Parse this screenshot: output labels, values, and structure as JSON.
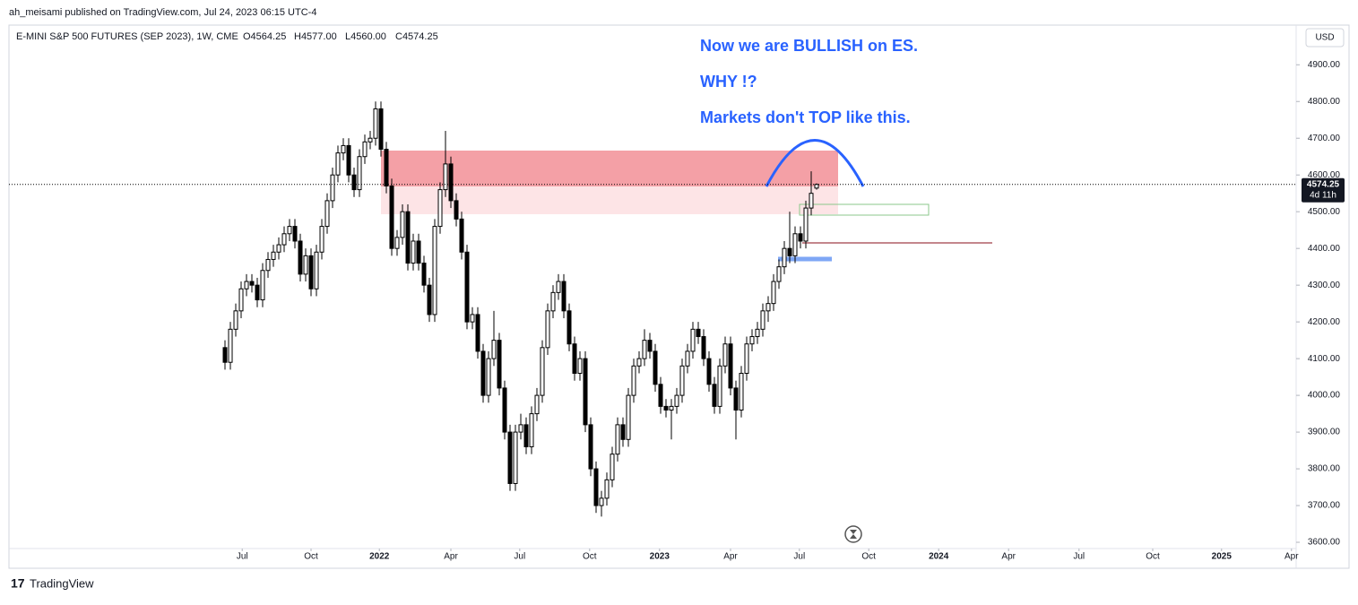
{
  "header": {
    "publisher": "ah_meisami published on TradingView.com, Jul 24, 2023 06:15 UTC-4",
    "footer": "TradingView"
  },
  "chart_data": {
    "type": "candlestick",
    "title": "E-MINI S&P 500 FUTURES (SEP 2023), 1W, CME",
    "ohlc_legend": [
      "O4564.25",
      "H4577.00",
      "L4560.00",
      "C4574.25"
    ],
    "currency": "USD",
    "last_price_label": "4574.25",
    "countdown": "4d 11h",
    "annotations": [
      "Now we are BULLISH on ES.",
      "WHY !?",
      "Markets don't TOP like this."
    ],
    "up_color": "#ffffff",
    "down_color": "#000000",
    "wick_color": "#000000",
    "ylim": [
      3583,
      5008
    ],
    "yticks": [
      {
        "value": 3600,
        "label": "3600.00"
      },
      {
        "value": 3700,
        "label": "3700.00"
      },
      {
        "value": 3800,
        "label": "3800.00"
      },
      {
        "value": 3900,
        "label": "3900.00"
      },
      {
        "value": 4000,
        "label": "4000.00"
      },
      {
        "value": 4100,
        "label": "4100.00"
      },
      {
        "value": 4200,
        "label": "4200.00"
      },
      {
        "value": 4300,
        "label": "4300.00"
      },
      {
        "value": 4400,
        "label": "4400.00"
      },
      {
        "value": 4500,
        "label": "4500.00"
      },
      {
        "value": 4600,
        "label": "4600.00"
      },
      {
        "value": 4700,
        "label": "4700.00"
      },
      {
        "value": 4800,
        "label": "4800.00"
      },
      {
        "value": 4900,
        "label": "4900.00"
      }
    ],
    "xlim": [
      -40.17,
      199.17
    ],
    "xticks": [
      {
        "value": 3.2,
        "label": "Jul"
      },
      {
        "value": 16,
        "label": "Oct"
      },
      {
        "value": 28.7,
        "label": "2022"
      },
      {
        "value": 42,
        "label": "Apr"
      },
      {
        "value": 54.8,
        "label": "Jul"
      },
      {
        "value": 67.8,
        "label": "Oct"
      },
      {
        "value": 80.8,
        "label": "2023"
      },
      {
        "value": 94,
        "label": "Apr"
      },
      {
        "value": 106.8,
        "label": "Jul"
      },
      {
        "value": 119.7,
        "label": "Oct"
      },
      {
        "value": 132.7,
        "label": "2024"
      },
      {
        "value": 145.7,
        "label": "Apr"
      },
      {
        "value": 158.8,
        "label": "Jul"
      },
      {
        "value": 172.5,
        "label": "Oct"
      },
      {
        "value": 185.3,
        "label": "2025"
      },
      {
        "value": 198.3,
        "label": "Apr"
      }
    ],
    "ohlc": [
      [
        4130,
        4150,
        4070,
        4090
      ],
      [
        4090,
        4200,
        4070,
        4180
      ],
      [
        4180,
        4250,
        4160,
        4230
      ],
      [
        4230,
        4310,
        4210,
        4290
      ],
      [
        4290,
        4330,
        4270,
        4310
      ],
      [
        4310,
        4330,
        4280,
        4300
      ],
      [
        4300,
        4320,
        4240,
        4260
      ],
      [
        4260,
        4360,
        4240,
        4340
      ],
      [
        4340,
        4390,
        4320,
        4370
      ],
      [
        4370,
        4410,
        4350,
        4390
      ],
      [
        4390,
        4430,
        4370,
        4410
      ],
      [
        4410,
        4460,
        4390,
        4440
      ],
      [
        4440,
        4480,
        4420,
        4460
      ],
      [
        4460,
        4480,
        4400,
        4420
      ],
      [
        4420,
        4440,
        4310,
        4330
      ],
      [
        4330,
        4400,
        4310,
        4380
      ],
      [
        4380,
        4400,
        4270,
        4290
      ],
      [
        4290,
        4410,
        4270,
        4390
      ],
      [
        4390,
        4480,
        4370,
        4460
      ],
      [
        4460,
        4550,
        4440,
        4530
      ],
      [
        4530,
        4620,
        4510,
        4600
      ],
      [
        4600,
        4680,
        4580,
        4660
      ],
      [
        4660,
        4700,
        4640,
        4680
      ],
      [
        4680,
        4700,
        4580,
        4600
      ],
      [
        4600,
        4620,
        4540,
        4560
      ],
      [
        4560,
        4670,
        4540,
        4650
      ],
      [
        4650,
        4710,
        4630,
        4690
      ],
      [
        4690,
        4720,
        4670,
        4700
      ],
      [
        4700,
        4800,
        4680,
        4780
      ],
      [
        4780,
        4800,
        4650,
        4670
      ],
      [
        4670,
        4690,
        4550,
        4570
      ],
      [
        4570,
        4590,
        4380,
        4400
      ],
      [
        4400,
        4450,
        4380,
        4430
      ],
      [
        4430,
        4520,
        4410,
        4500
      ],
      [
        4500,
        4520,
        4340,
        4360
      ],
      [
        4360,
        4440,
        4340,
        4420
      ],
      [
        4420,
        4440,
        4340,
        4360
      ],
      [
        4360,
        4380,
        4280,
        4300
      ],
      [
        4300,
        4320,
        4200,
        4220
      ],
      [
        4220,
        4480,
        4200,
        4460
      ],
      [
        4460,
        4580,
        4440,
        4560
      ],
      [
        4560,
        4720,
        4540,
        4630
      ],
      [
        4630,
        4650,
        4510,
        4530
      ],
      [
        4530,
        4550,
        4460,
        4480
      ],
      [
        4480,
        4500,
        4370,
        4390
      ],
      [
        4390,
        4410,
        4180,
        4200
      ],
      [
        4200,
        4240,
        4180,
        4220
      ],
      [
        4220,
        4240,
        4100,
        4120
      ],
      [
        4120,
        4140,
        3980,
        4000
      ],
      [
        4000,
        4120,
        3980,
        4100
      ],
      [
        4100,
        4230,
        4080,
        4150
      ],
      [
        4150,
        4170,
        4000,
        4020
      ],
      [
        4020,
        4040,
        3880,
        3900
      ],
      [
        3900,
        3920,
        3740,
        3760
      ],
      [
        3760,
        3920,
        3740,
        3900
      ],
      [
        3900,
        3950,
        3880,
        3920
      ],
      [
        3920,
        3940,
        3840,
        3860
      ],
      [
        3860,
        3970,
        3840,
        3950
      ],
      [
        3950,
        4020,
        3930,
        4000
      ],
      [
        4000,
        4150,
        3980,
        4130
      ],
      [
        4130,
        4250,
        4110,
        4230
      ],
      [
        4230,
        4300,
        4210,
        4280
      ],
      [
        4280,
        4330,
        4260,
        4310
      ],
      [
        4310,
        4330,
        4210,
        4230
      ],
      [
        4230,
        4250,
        4120,
        4140
      ],
      [
        4140,
        4160,
        4040,
        4060
      ],
      [
        4060,
        4120,
        4040,
        4100
      ],
      [
        4100,
        4120,
        3900,
        3920
      ],
      [
        3920,
        3940,
        3780,
        3800
      ],
      [
        3800,
        3820,
        3680,
        3700
      ],
      [
        3700,
        3740,
        3670,
        3720
      ],
      [
        3720,
        3790,
        3700,
        3770
      ],
      [
        3770,
        3860,
        3750,
        3840
      ],
      [
        3840,
        3940,
        3820,
        3920
      ],
      [
        3920,
        3940,
        3860,
        3880
      ],
      [
        3880,
        4020,
        3860,
        4000
      ],
      [
        4000,
        4100,
        3980,
        4080
      ],
      [
        4080,
        4120,
        4060,
        4100
      ],
      [
        4100,
        4180,
        4080,
        4150
      ],
      [
        4150,
        4170,
        4100,
        4120
      ],
      [
        4120,
        4140,
        4010,
        4030
      ],
      [
        4030,
        4050,
        3950,
        3970
      ],
      [
        3970,
        3990,
        3940,
        3960
      ],
      [
        3960,
        3990,
        3880,
        3970
      ],
      [
        3970,
        4020,
        3950,
        4000
      ],
      [
        4000,
        4100,
        3980,
        4080
      ],
      [
        4080,
        4140,
        4060,
        4120
      ],
      [
        4120,
        4200,
        4100,
        4180
      ],
      [
        4180,
        4200,
        4140,
        4160
      ],
      [
        4160,
        4180,
        4080,
        4100
      ],
      [
        4100,
        4120,
        4010,
        4030
      ],
      [
        4030,
        4050,
        3950,
        3970
      ],
      [
        3970,
        4100,
        3950,
        4080
      ],
      [
        4080,
        4160,
        4060,
        4140
      ],
      [
        4140,
        4160,
        4000,
        4020
      ],
      [
        4020,
        4040,
        3880,
        3960
      ],
      [
        3960,
        4080,
        3940,
        4060
      ],
      [
        4060,
        4160,
        4040,
        4140
      ],
      [
        4140,
        4180,
        4120,
        4160
      ],
      [
        4160,
        4200,
        4140,
        4180
      ],
      [
        4180,
        4250,
        4160,
        4230
      ],
      [
        4230,
        4270,
        4200,
        4250
      ],
      [
        4250,
        4330,
        4230,
        4310
      ],
      [
        4310,
        4370,
        4290,
        4350
      ],
      [
        4350,
        4420,
        4330,
        4400
      ],
      [
        4400,
        4500,
        4360,
        4380
      ],
      [
        4380,
        4460,
        4360,
        4440
      ],
      [
        4440,
        4460,
        4400,
        4420
      ],
      [
        4420,
        4530,
        4400,
        4510
      ],
      [
        4510,
        4610,
        4490,
        4550
      ],
      [
        4564.25,
        4577,
        4560,
        4574.25
      ]
    ]
  }
}
